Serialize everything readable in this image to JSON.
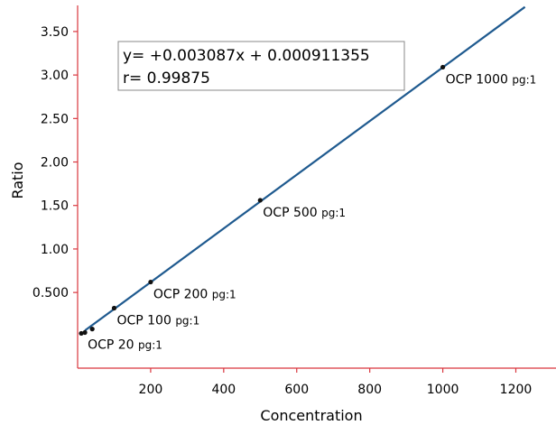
{
  "chart_data": {
    "type": "scatter",
    "xlabel": "Concentration",
    "ylabel": "Ratio",
    "xlim": [
      0,
      1310
    ],
    "ylim": [
      -0.37,
      3.8
    ],
    "x_ticks": [
      {
        "value": 200,
        "label": "200"
      },
      {
        "value": 400,
        "label": "400"
      },
      {
        "value": 600,
        "label": "600"
      },
      {
        "value": 800,
        "label": "800"
      },
      {
        "value": 1000,
        "label": "1000"
      },
      {
        "value": 1200,
        "label": "1200"
      }
    ],
    "y_ticks": [
      {
        "value": 0.5,
        "label": "0.500"
      },
      {
        "value": 1.0,
        "label": "1.00"
      },
      {
        "value": 1.5,
        "label": "1.50"
      },
      {
        "value": 2.0,
        "label": "2.00"
      },
      {
        "value": 2.5,
        "label": "2.50"
      },
      {
        "value": 3.0,
        "label": "3.00"
      },
      {
        "value": 3.5,
        "label": "3.50"
      }
    ],
    "points": [
      {
        "x": 10,
        "y": 0.03,
        "label_name": "",
        "label_unit": ""
      },
      {
        "x": 20,
        "y": 0.04,
        "label_name": "OCP 20",
        "label_unit": "pg:1"
      },
      {
        "x": 40,
        "y": 0.08,
        "label_name": "",
        "label_unit": ""
      },
      {
        "x": 100,
        "y": 0.32,
        "label_name": "OCP 100",
        "label_unit": "pg:1"
      },
      {
        "x": 200,
        "y": 0.62,
        "label_name": "OCP 200",
        "label_unit": "pg:1"
      },
      {
        "x": 500,
        "y": 1.56,
        "label_name": "OCP 500",
        "label_unit": "pg:1"
      },
      {
        "x": 1000,
        "y": 3.09,
        "label_name": "OCP 1000",
        "label_unit": "pg:1"
      }
    ],
    "fit": {
      "slope": 0.003087,
      "intercept": 0.000911355,
      "x_range": [
        20,
        1225
      ],
      "color": "#1f5a8f",
      "equation": "y= +0.003087x + 0.000911355",
      "r_text": "r= 0.99875"
    },
    "axis_color": "#d9363e",
    "point_color": "#111111"
  }
}
